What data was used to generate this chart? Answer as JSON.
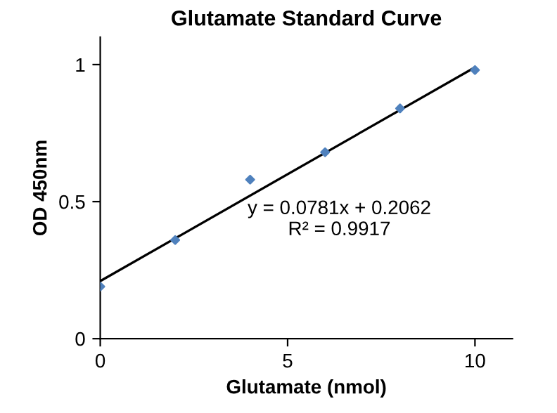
{
  "chart_data": {
    "type": "scatter",
    "title": "Glutamate Standard Curve",
    "xlabel": "Glutamate (nmol)",
    "ylabel": "OD 450nm",
    "xlim": [
      0,
      11
    ],
    "ylim": [
      0,
      1.1
    ],
    "xticks": [
      0,
      5,
      10
    ],
    "yticks": [
      0,
      0.5,
      1
    ],
    "grid": false,
    "series": [
      {
        "color": "#4f81bd",
        "marker": "diamond",
        "x": [
          0,
          2,
          4,
          6,
          8,
          10
        ],
        "values": [
          0.19,
          0.36,
          0.58,
          0.68,
          0.84,
          0.98
        ]
      },
      {
        "type": "line",
        "color": "#000000",
        "marker": "none",
        "x": [
          0,
          10
        ],
        "values": [
          0.21,
          0.99
        ]
      }
    ],
    "annotations": [
      "y = 0.0781x + 0.2062\nR² = 0.9917"
    ]
  }
}
